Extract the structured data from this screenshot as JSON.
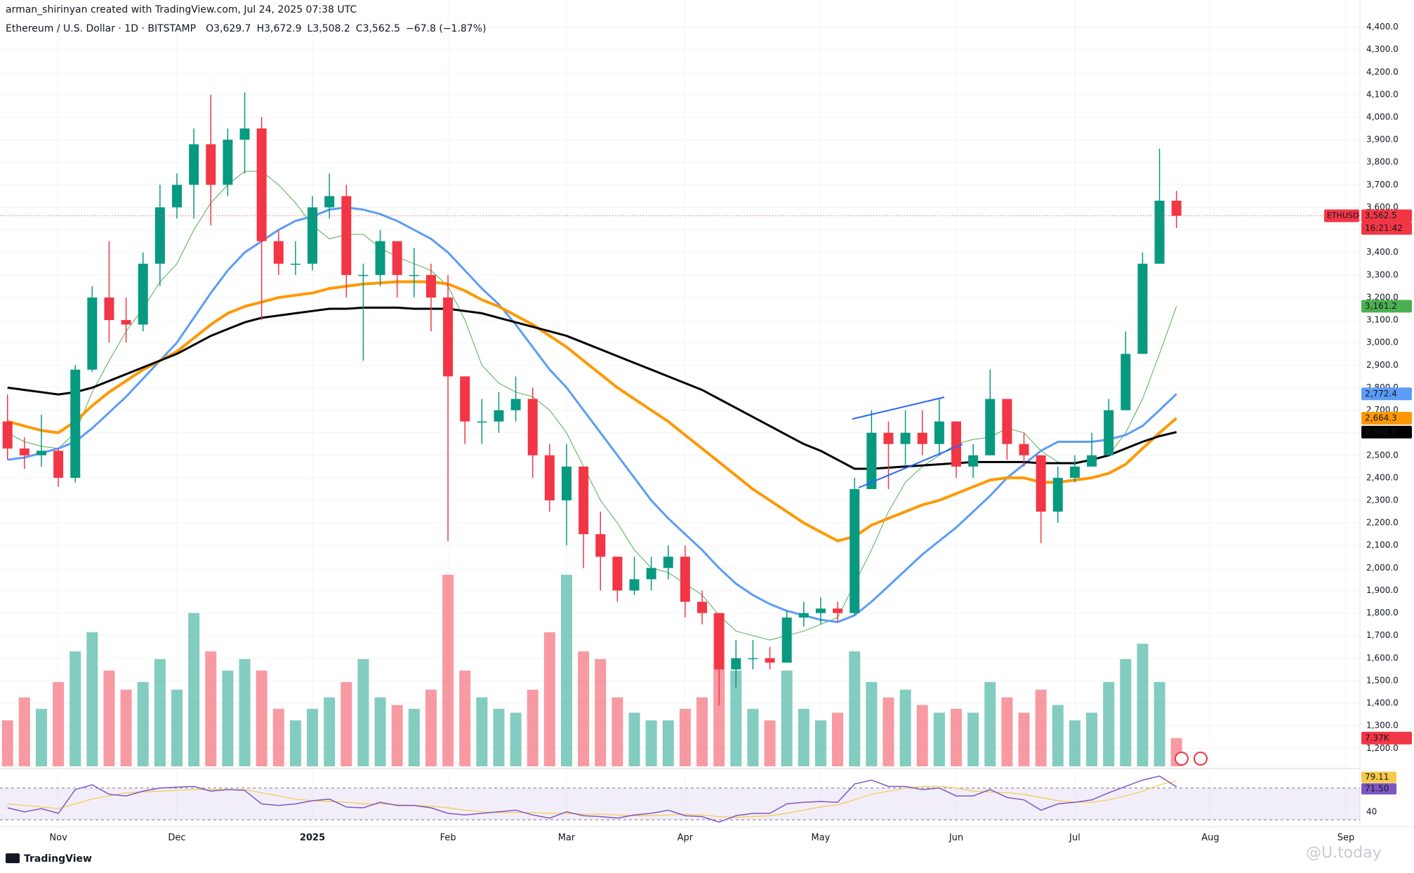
{
  "header": {
    "author_line": "arman_shirinyan created with TradingView.com, Jul 24, 2025 07:38 UTC",
    "symbol_line": "Ethereum / U.S. Dollar · 1D · BITSTAMP",
    "ohlc": [
      {
        "key": "O",
        "text": "3,629.7"
      },
      {
        "key": "H",
        "text": "3,672.9"
      },
      {
        "key": "L",
        "text": "3,508.2"
      },
      {
        "key": "C",
        "text": "3,562.5"
      }
    ],
    "change": "−67.8 (−1.87%)"
  },
  "footer": {
    "brand": "TradingView",
    "watermark": "@U.today"
  },
  "chart_data": [
    {
      "type": "candlestick",
      "categories": [
        null,
        null,
        null,
        "Nov",
        null,
        null,
        null,
        null,
        null,
        null,
        "Dec",
        null,
        null,
        null,
        null,
        null,
        null,
        null,
        "2025",
        null,
        null,
        null,
        null,
        null,
        null,
        null,
        "Feb",
        null,
        null,
        null,
        null,
        null,
        null,
        "Mar",
        null,
        null,
        null,
        null,
        null,
        null,
        "Apr",
        null,
        null,
        null,
        null,
        null,
        null,
        null,
        "May",
        null,
        null,
        null,
        null,
        null,
        null,
        null,
        "Jun",
        null,
        null,
        null,
        null,
        null,
        null,
        "Jul",
        null,
        null,
        null,
        null,
        null,
        null,
        null,
        "Aug",
        null,
        null,
        null,
        null,
        null,
        null,
        null,
        "Sep"
      ],
      "open": [
        2650,
        2530,
        2500,
        2520,
        2400,
        2880,
        3200,
        3100,
        3080,
        3350,
        3600,
        3700,
        3880,
        3700,
        3900,
        3950,
        3450,
        3350,
        3350,
        3600,
        3650,
        3300,
        3300,
        3450,
        3300,
        3300,
        3200,
        2850,
        2650,
        2650,
        2700,
        2750,
        2500,
        2300,
        2450,
        2150,
        2050,
        1900,
        1950,
        2000,
        2050,
        1850,
        1800,
        1550,
        1600,
        1600,
        1580,
        1780,
        1800,
        1820,
        1800,
        2350,
        2600,
        2550,
        2600,
        2550,
        2650,
        2450,
        2500,
        2750,
        2550,
        2500,
        2250,
        2400,
        2450,
        2500,
        2700,
        2950,
        3350,
        3629.7,
        null,
        null,
        null,
        null,
        null,
        null,
        null,
        null,
        null,
        null
      ],
      "high": [
        2770,
        2580,
        2680,
        2530,
        2900,
        3250,
        3450,
        3200,
        3400,
        3700,
        3750,
        3950,
        4100,
        3950,
        4110,
        4000,
        3500,
        3450,
        3650,
        3750,
        3700,
        3350,
        3500,
        3450,
        3420,
        3350,
        3300,
        2850,
        2750,
        2780,
        2850,
        2800,
        2550,
        2550,
        2450,
        2250,
        2050,
        2050,
        2050,
        2100,
        2100,
        1900,
        1800,
        1680,
        1680,
        1650,
        1810,
        1850,
        1870,
        1850,
        2400,
        2700,
        2650,
        2700,
        2700,
        2750,
        2650,
        2550,
        2880,
        2750,
        2600,
        2500,
        2450,
        2500,
        2600,
        2750,
        3050,
        3400,
        3860,
        3672.9,
        null,
        null,
        null,
        null,
        null,
        null,
        null,
        null,
        null,
        null
      ],
      "low": [
        2480,
        2440,
        2450,
        2360,
        2380,
        2870,
        3000,
        3000,
        3050,
        3250,
        3550,
        3550,
        3520,
        3650,
        3750,
        3100,
        3300,
        3300,
        3320,
        3550,
        3200,
        2920,
        3250,
        3200,
        3200,
        3050,
        2120,
        2550,
        2550,
        2600,
        2650,
        2400,
        2250,
        2100,
        2000,
        1900,
        1850,
        1880,
        1900,
        1950,
        1780,
        1750,
        1390,
        1470,
        1550,
        1550,
        1580,
        1740,
        1750,
        1760,
        1790,
        2350,
        2350,
        2450,
        2500,
        2500,
        2400,
        2400,
        2500,
        2480,
        2450,
        2110,
        2200,
        2380,
        2450,
        2500,
        2700,
        2950,
        3350,
        3508.2,
        null,
        null,
        null,
        null,
        null,
        null,
        null,
        null,
        null,
        null
      ],
      "close": [
        2530,
        2500,
        2520,
        2400,
        2880,
        3200,
        3100,
        3080,
        3350,
        3600,
        3700,
        3880,
        3700,
        3900,
        3950,
        3450,
        3350,
        3350,
        3600,
        3650,
        3300,
        3300,
        3450,
        3300,
        3300,
        3200,
        2850,
        2650,
        2650,
        2700,
        2750,
        2500,
        2300,
        2450,
        2150,
        2050,
        1900,
        1950,
        2000,
        2050,
        1850,
        1800,
        1550,
        1600,
        1600,
        1580,
        1780,
        1800,
        1820,
        1800,
        2350,
        2600,
        2550,
        2600,
        2550,
        2650,
        2450,
        2500,
        2750,
        2550,
        2500,
        2250,
        2400,
        2450,
        2500,
        2700,
        2950,
        3350,
        3629.7,
        3562.5,
        null,
        null,
        null,
        null,
        null,
        null,
        null,
        null,
        null,
        null
      ],
      "up_color": "#089981",
      "down_color": "#f23645",
      "ylim": [
        1120,
        4520
      ],
      "yticks": [
        {
          "value": 1200,
          "label": "1,200.0"
        },
        {
          "value": 1300,
          "label": "1,300.0"
        },
        {
          "value": 1400,
          "label": "1,400.0"
        },
        {
          "value": 1500,
          "label": "1,500.0"
        },
        {
          "value": 1600,
          "label": "1,600.0"
        },
        {
          "value": 1700,
          "label": "1,700.0"
        },
        {
          "value": 1800,
          "label": "1,800.0"
        },
        {
          "value": 1900,
          "label": "1,900.0"
        },
        {
          "value": 2000,
          "label": "2,000.0"
        },
        {
          "value": 2100,
          "label": "2,100.0"
        },
        {
          "value": 2200,
          "label": "2,200.0"
        },
        {
          "value": 2300,
          "label": "2,300.0"
        },
        {
          "value": 2400,
          "label": "2,400.0"
        },
        {
          "value": 2500,
          "label": "2,500.0"
        },
        {
          "value": 2600,
          "label": "2,600.0"
        },
        {
          "value": 2700,
          "label": "2,700.0"
        },
        {
          "value": 2800,
          "label": "2,800.0"
        },
        {
          "value": 2900,
          "label": "2,900.0"
        },
        {
          "value": 3000,
          "label": "3,000.0"
        },
        {
          "value": 3100,
          "label": "3,100.0"
        },
        {
          "value": 3200,
          "label": "3,200.0"
        },
        {
          "value": 3300,
          "label": "3,300.0"
        },
        {
          "value": 3400,
          "label": "3,400.0"
        },
        {
          "value": 3500,
          "label": "3,500.0"
        },
        {
          "value": 3600,
          "label": "3,600.0"
        },
        {
          "value": 3700,
          "label": "3,700.0"
        },
        {
          "value": 3800,
          "label": "3,800.0"
        },
        {
          "value": 3900,
          "label": "3,900.0"
        },
        {
          "value": 4000,
          "label": "4,000.0"
        },
        {
          "value": 4100,
          "label": "4,100.0"
        },
        {
          "value": 4200,
          "label": "4,200.0"
        },
        {
          "value": 4300,
          "label": "4,300.0"
        },
        {
          "value": 4400,
          "label": "4,400.0"
        }
      ],
      "grid": true,
      "last_price": {
        "value": 3562.5,
        "label": "3,562.5"
      },
      "symbol_tag": "ETHUSD",
      "countdown": "16:21:42",
      "overlays": [
        {
          "color": "#4caf50",
          "width": 1,
          "last_label": "3,161.2",
          "values": [
            2600,
            2560,
            2540,
            2530,
            2600,
            2780,
            2920,
            3050,
            3150,
            3270,
            3350,
            3500,
            3620,
            3700,
            3760,
            3760,
            3700,
            3620,
            3520,
            3460,
            3480,
            3480,
            3420,
            3380,
            3350,
            3320,
            3250,
            3100,
            2900,
            2820,
            2780,
            2760,
            2700,
            2600,
            2450,
            2300,
            2200,
            2080,
            2000,
            1980,
            1930,
            1880,
            1790,
            1720,
            1700,
            1680,
            1700,
            1720,
            1750,
            1780,
            1930,
            2080,
            2250,
            2380,
            2450,
            2500,
            2550,
            2570,
            2580,
            2620,
            2600,
            2520,
            2470,
            2460,
            2480,
            2500,
            2600,
            2750,
            2950,
            3161.2,
            null,
            null,
            null,
            null,
            null,
            null,
            null,
            null,
            null,
            null
          ]
        },
        {
          "color": "#5b9cf6",
          "width": 3,
          "last_label": "2,772.4",
          "values": [
            2480,
            2490,
            2510,
            2530,
            2560,
            2620,
            2690,
            2760,
            2840,
            2920,
            3000,
            3110,
            3220,
            3320,
            3400,
            3450,
            3500,
            3540,
            3560,
            3590,
            3600,
            3590,
            3570,
            3540,
            3500,
            3460,
            3400,
            3320,
            3240,
            3170,
            3080,
            2980,
            2880,
            2800,
            2700,
            2600,
            2500,
            2400,
            2300,
            2220,
            2150,
            2080,
            2000,
            1930,
            1880,
            1840,
            1810,
            1790,
            1770,
            1760,
            1790,
            1850,
            1920,
            1990,
            2060,
            2120,
            2180,
            2250,
            2320,
            2400,
            2460,
            2520,
            2560,
            2560,
            2560,
            2570,
            2590,
            2630,
            2700,
            2772.4,
            null,
            null,
            null,
            null,
            null,
            null,
            null,
            null,
            null,
            null
          ]
        },
        {
          "color": "#ff9800",
          "width": 4,
          "last_label": "2,664.3",
          "values": [
            2650,
            2630,
            2610,
            2600,
            2650,
            2720,
            2780,
            2830,
            2880,
            2920,
            2960,
            3020,
            3080,
            3130,
            3160,
            3180,
            3200,
            3210,
            3220,
            3240,
            3250,
            3260,
            3265,
            3270,
            3270,
            3270,
            3260,
            3230,
            3190,
            3160,
            3120,
            3080,
            3030,
            2980,
            2920,
            2860,
            2800,
            2750,
            2700,
            2650,
            2590,
            2530,
            2470,
            2410,
            2350,
            2300,
            2250,
            2200,
            2160,
            2120,
            2140,
            2190,
            2220,
            2250,
            2280,
            2300,
            2330,
            2360,
            2390,
            2400,
            2400,
            2380,
            2380,
            2390,
            2400,
            2420,
            2460,
            2530,
            2600,
            2664.3,
            null,
            null,
            null,
            null,
            null,
            null,
            null,
            null,
            null,
            null
          ]
        },
        {
          "color": "#000000",
          "width": 3,
          "last_label": "2,602.9",
          "values": [
            2800,
            2790,
            2780,
            2770,
            2780,
            2800,
            2830,
            2860,
            2890,
            2920,
            2950,
            2990,
            3030,
            3060,
            3090,
            3110,
            3120,
            3130,
            3140,
            3150,
            3150,
            3155,
            3155,
            3155,
            3150,
            3150,
            3150,
            3140,
            3130,
            3110,
            3090,
            3070,
            3050,
            3030,
            3000,
            2970,
            2940,
            2910,
            2880,
            2850,
            2820,
            2790,
            2750,
            2710,
            2670,
            2630,
            2590,
            2550,
            2520,
            2480,
            2440,
            2440,
            2445,
            2450,
            2455,
            2460,
            2465,
            2470,
            2470,
            2470,
            2470,
            2465,
            2465,
            2465,
            2480,
            2500,
            2530,
            2560,
            2585,
            2602.9,
            null,
            null,
            null,
            null,
            null,
            null,
            null,
            null,
            null,
            null
          ]
        }
      ]
    },
    {
      "type": "volume",
      "ylim": [
        0,
        200
      ],
      "last_label": "7.37K",
      "up_color": "rgba(8,153,129,0.5)",
      "down_color": "rgba(242,54,69,0.5)",
      "values": [
        12,
        18,
        15,
        22,
        30,
        35,
        25,
        20,
        22,
        28,
        20,
        40,
        30,
        25,
        28,
        25,
        15,
        12,
        15,
        18,
        22,
        28,
        18,
        16,
        15,
        20,
        50,
        25,
        18,
        15,
        14,
        20,
        35,
        50,
        30,
        28,
        18,
        14,
        12,
        12,
        15,
        18,
        40,
        25,
        15,
        12,
        25,
        15,
        12,
        14,
        30,
        22,
        18,
        20,
        16,
        14,
        15,
        14,
        22,
        18,
        14,
        20,
        16,
        12,
        14,
        22,
        28,
        32,
        22,
        7.37,
        null,
        null,
        null,
        null,
        null,
        null,
        null,
        null,
        null,
        null
      ]
    },
    {
      "type": "line",
      "ylim": [
        23,
        92
      ],
      "yticks": [
        40
      ],
      "bands": [
        30,
        70
      ],
      "band_color": "rgba(126,87,194,0.1)",
      "series": [
        {
          "color": "#f7c948",
          "last_label": "79.11",
          "values": [
            50,
            48,
            46,
            44,
            50,
            56,
            60,
            64,
            65,
            66,
            67,
            68,
            68,
            68,
            68,
            64,
            60,
            56,
            54,
            53,
            52,
            50,
            50,
            49,
            48,
            47,
            45,
            42,
            40,
            39,
            39,
            39,
            38,
            38,
            37,
            37,
            36,
            35,
            35,
            36,
            37,
            36,
            34,
            33,
            34,
            35,
            38,
            42,
            46,
            49,
            55,
            62,
            66,
            70,
            72,
            72,
            70,
            66,
            65,
            64,
            62,
            58,
            54,
            52,
            52,
            55,
            60,
            66,
            74,
            79.11,
            null,
            null,
            null,
            null,
            null,
            null,
            null,
            null,
            null,
            null
          ]
        },
        {
          "color": "#7e57c2",
          "last_label": "71.50",
          "values": [
            45,
            40,
            44,
            38,
            68,
            74,
            62,
            60,
            66,
            70,
            71,
            72,
            66,
            68,
            67,
            50,
            48,
            50,
            54,
            56,
            46,
            45,
            52,
            48,
            48,
            45,
            38,
            36,
            38,
            40,
            42,
            36,
            32,
            40,
            35,
            34,
            32,
            36,
            38,
            42,
            35,
            34,
            27,
            35,
            38,
            38,
            50,
            52,
            53,
            52,
            75,
            80,
            72,
            72,
            68,
            70,
            60,
            60,
            68,
            58,
            55,
            42,
            50,
            52,
            55,
            64,
            72,
            80,
            85,
            71.5,
            null,
            null,
            null,
            null,
            null,
            null,
            null,
            null,
            null,
            null
          ]
        }
      ]
    }
  ]
}
